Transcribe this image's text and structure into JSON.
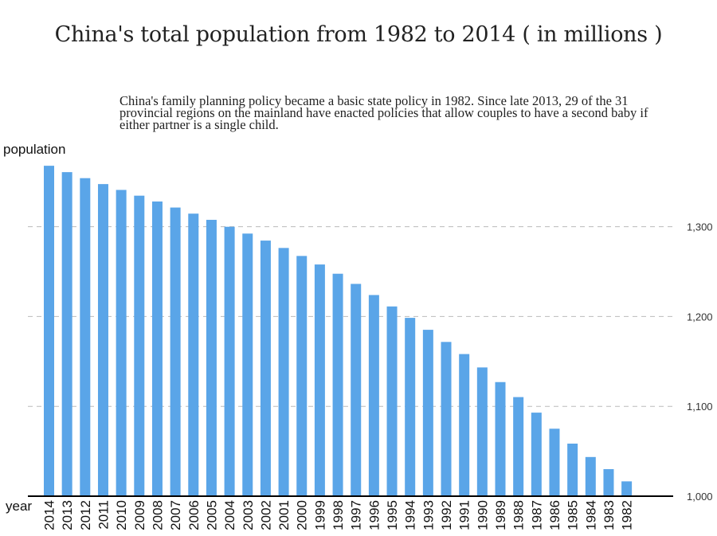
{
  "title": "China's total population from 1982 to 2014 ( in millions )",
  "description": "China's family planning policy became a basic state policy in 1982. Since late 2013, 29 of the 31 provincial regions on the mainland have enacted policies that allow couples to have a second baby if either partner is a single child.",
  "chart_data": {
    "type": "bar",
    "title": "China's total population from 1982 to 2014 ( in millions )",
    "xlabel": "year",
    "ylabel": "population",
    "ylim": [
      1000,
      1380
    ],
    "yticks": [
      1000,
      1100,
      1200,
      1300
    ],
    "ytick_labels": [
      "1,000",
      "1,100",
      "1,200",
      "1,300"
    ],
    "y_axis_position": "right",
    "grid": "horizontal dashed",
    "bar_color": "#5aa5e8",
    "categories": [
      "2014",
      "2013",
      "2012",
      "2011",
      "2010",
      "2009",
      "2008",
      "2007",
      "2006",
      "2005",
      "2004",
      "2003",
      "2002",
      "2001",
      "2000",
      "1999",
      "1998",
      "1997",
      "1996",
      "1995",
      "1994",
      "1993",
      "1992",
      "1991",
      "1990",
      "1989",
      "1988",
      "1987",
      "1986",
      "1985",
      "1984",
      "1983",
      "1982"
    ],
    "values": [
      1367.8,
      1360.7,
      1354.0,
      1347.4,
      1340.9,
      1334.5,
      1328.0,
      1321.3,
      1314.5,
      1307.6,
      1299.9,
      1292.3,
      1284.5,
      1276.3,
      1267.4,
      1257.9,
      1247.6,
      1236.3,
      1223.9,
      1211.2,
      1198.5,
      1185.2,
      1171.7,
      1158.2,
      1143.3,
      1127.0,
      1110.3,
      1093.0,
      1075.1,
      1058.5,
      1043.6,
      1030.1,
      1016.5
    ]
  }
}
